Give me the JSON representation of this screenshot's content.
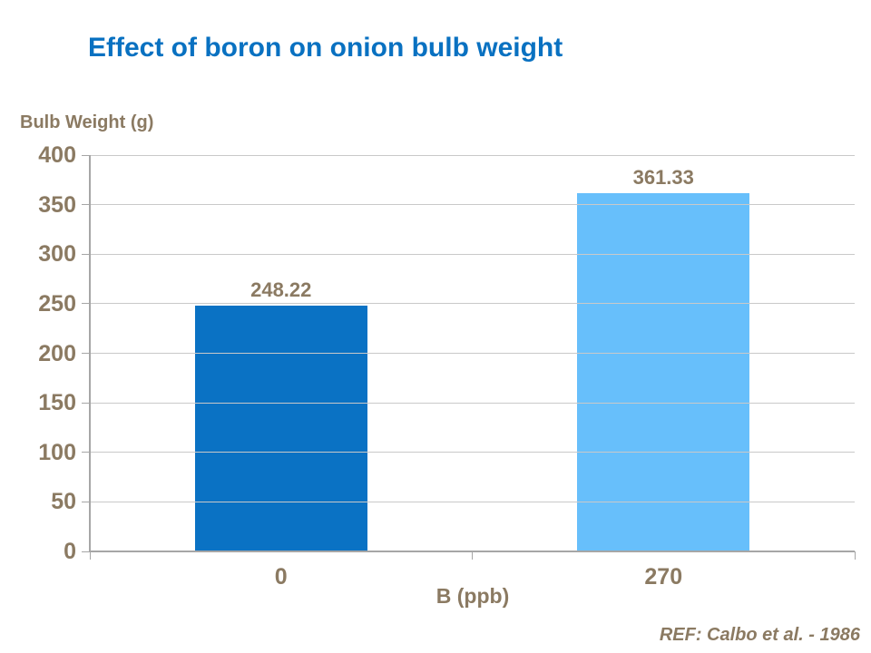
{
  "slide": {
    "footer_ref": "REF: Calbo et al. - 1986"
  },
  "chart_data": {
    "type": "bar",
    "title": "Effect of boron on onion bulb weight",
    "categories": [
      "0",
      "270"
    ],
    "values": [
      248.22,
      361.33
    ],
    "value_labels": [
      "248.22",
      "361.33"
    ],
    "bar_colors": [
      "#0a72c4",
      "#67bffb"
    ],
    "xlabel": "B (ppb)",
    "ylabel": "Bulb Weight (g)",
    "ylim": [
      0,
      400
    ],
    "ytick_step": 50,
    "ytick_labels": [
      "0",
      "50",
      "100",
      "150",
      "200",
      "250",
      "300",
      "350",
      "400"
    ],
    "grid": "horizontal",
    "legend": "none"
  },
  "colors": {
    "title_text": "#0971c1",
    "chart_text": "#8b7a62",
    "axis_line": "#a6a6a6",
    "gridline": "#c9c9c9",
    "background": "#ffffff"
  }
}
